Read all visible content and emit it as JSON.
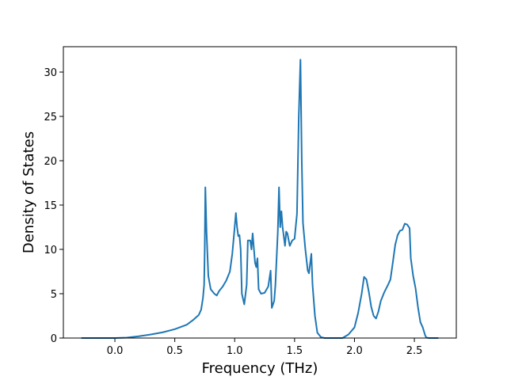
{
  "chart_data": {
    "type": "line",
    "xlabel": "Frequency (THz)",
    "ylabel": "Density of States",
    "x": [
      -0.28,
      0.0,
      0.1,
      0.2,
      0.3,
      0.4,
      0.5,
      0.6,
      0.65,
      0.7,
      0.72,
      0.735,
      0.745,
      0.75,
      0.755,
      0.765,
      0.78,
      0.8,
      0.83,
      0.85,
      0.87,
      0.9,
      0.93,
      0.96,
      0.98,
      1.0,
      1.01,
      1.02,
      1.03,
      1.04,
      1.05,
      1.06,
      1.08,
      1.1,
      1.11,
      1.13,
      1.14,
      1.15,
      1.17,
      1.18,
      1.19,
      1.2,
      1.22,
      1.25,
      1.28,
      1.3,
      1.31,
      1.33,
      1.34,
      1.36,
      1.37,
      1.38,
      1.39,
      1.4,
      1.42,
      1.43,
      1.44,
      1.46,
      1.48,
      1.5,
      1.52,
      1.535,
      1.549,
      1.56,
      1.57,
      1.59,
      1.61,
      1.62,
      1.64,
      1.65,
      1.67,
      1.69,
      1.72,
      1.75,
      1.9,
      1.95,
      2.0,
      2.03,
      2.06,
      2.08,
      2.1,
      2.12,
      2.14,
      2.16,
      2.18,
      2.2,
      2.22,
      2.25,
      2.28,
      2.3,
      2.32,
      2.34,
      2.36,
      2.38,
      2.4,
      2.42,
      2.44,
      2.46,
      2.47,
      2.49,
      2.51,
      2.53,
      2.55,
      2.57,
      2.59,
      2.6,
      2.62,
      2.7
    ],
    "series": [
      {
        "name": "DOS",
        "color": "#1f77b4",
        "values": [
          0,
          0,
          0.05,
          0.2,
          0.4,
          0.65,
          1.0,
          1.5,
          2.0,
          2.6,
          3.2,
          4.5,
          6,
          10,
          17,
          12,
          7,
          5.5,
          5.0,
          4.8,
          5.3,
          5.8,
          6.5,
          7.5,
          9.5,
          12.5,
          14.1,
          12.5,
          11.5,
          11.6,
          10,
          5,
          3.8,
          6,
          11,
          11,
          10,
          11.8,
          8.5,
          8,
          9,
          5.5,
          5,
          5.1,
          5.8,
          7.6,
          3.4,
          4.2,
          6,
          12,
          17,
          12.5,
          14.3,
          12.5,
          10.4,
          12,
          11.8,
          10.4,
          11,
          11.2,
          14,
          25,
          31.4,
          20,
          13,
          10,
          7.6,
          7.3,
          9.5,
          6,
          2.5,
          0.6,
          0.1,
          0,
          0,
          0.4,
          1.2,
          2.8,
          5,
          6.9,
          6.6,
          5.2,
          3.5,
          2.5,
          2.2,
          3,
          4.2,
          5.2,
          6,
          6.6,
          8.5,
          10.5,
          11.6,
          12.1,
          12.2,
          12.9,
          12.8,
          12.4,
          9,
          7,
          5.6,
          3.5,
          1.8,
          1.2,
          0.3,
          0.05,
          0,
          0
        ]
      }
    ],
    "xlim": [
      -0.43,
      2.85
    ],
    "xticks": [
      {
        "value": 0,
        "label": "0.0"
      },
      0.5,
      {
        "value": 1,
        "label": "1.0"
      },
      1.5,
      {
        "value": 2,
        "label": "2.0"
      },
      2.5
    ],
    "ylim": [
      0,
      32.86
    ],
    "yticks": [
      0,
      5,
      10,
      15,
      20,
      25,
      30
    ],
    "grid": false
  }
}
